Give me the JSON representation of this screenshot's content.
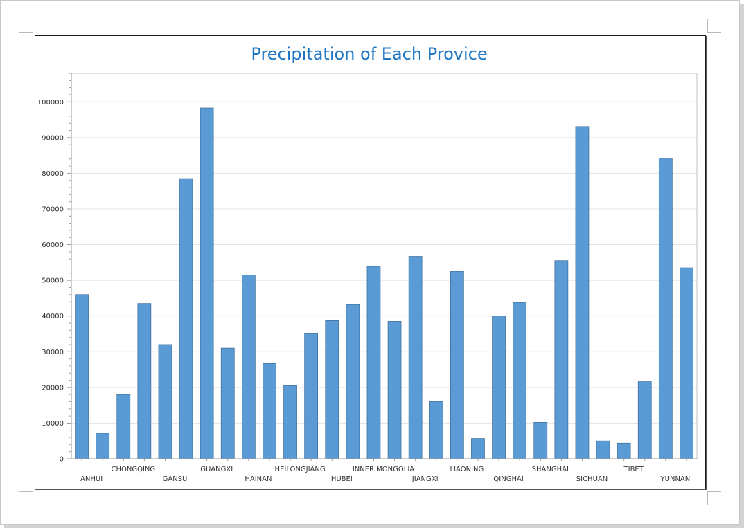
{
  "chart_data": {
    "type": "bar",
    "title": "Precipitation of Each Provice",
    "xlabel": "",
    "ylabel": "",
    "ylim": [
      0,
      108000
    ],
    "yticks": [
      "0",
      "10000",
      "20000",
      "30000",
      "40000",
      "50000",
      "60000",
      "70000",
      "80000",
      "90000",
      "100000"
    ],
    "grid": true,
    "legend": "none",
    "bar_color": "#5b9bd5",
    "bar_edge_color": "#41719c",
    "categories": [
      "ANHUI",
      "",
      "CHONGQING",
      "",
      "GANSU",
      "",
      "GUANGXI",
      "",
      "HAINAN",
      "",
      "HEILONGJIANG",
      "",
      "HUBEI",
      "",
      "INNER MONGOLIA",
      "",
      "JIANGXI",
      "",
      "LIAONING",
      "",
      "QINGHAI",
      "",
      "SHANGHAI",
      "",
      "SICHUAN",
      "",
      "TIBET",
      "",
      "YUNNAN",
      ""
    ],
    "values": [
      46000,
      7200,
      18000,
      43500,
      32000,
      78500,
      98300,
      31000,
      51500,
      26700,
      20500,
      35200,
      38700,
      43200,
      53900,
      38500,
      56700,
      16000,
      52500,
      5700,
      40000,
      43800,
      10200,
      55500,
      93100,
      5000,
      4400,
      21600,
      84200,
      53500
    ]
  }
}
